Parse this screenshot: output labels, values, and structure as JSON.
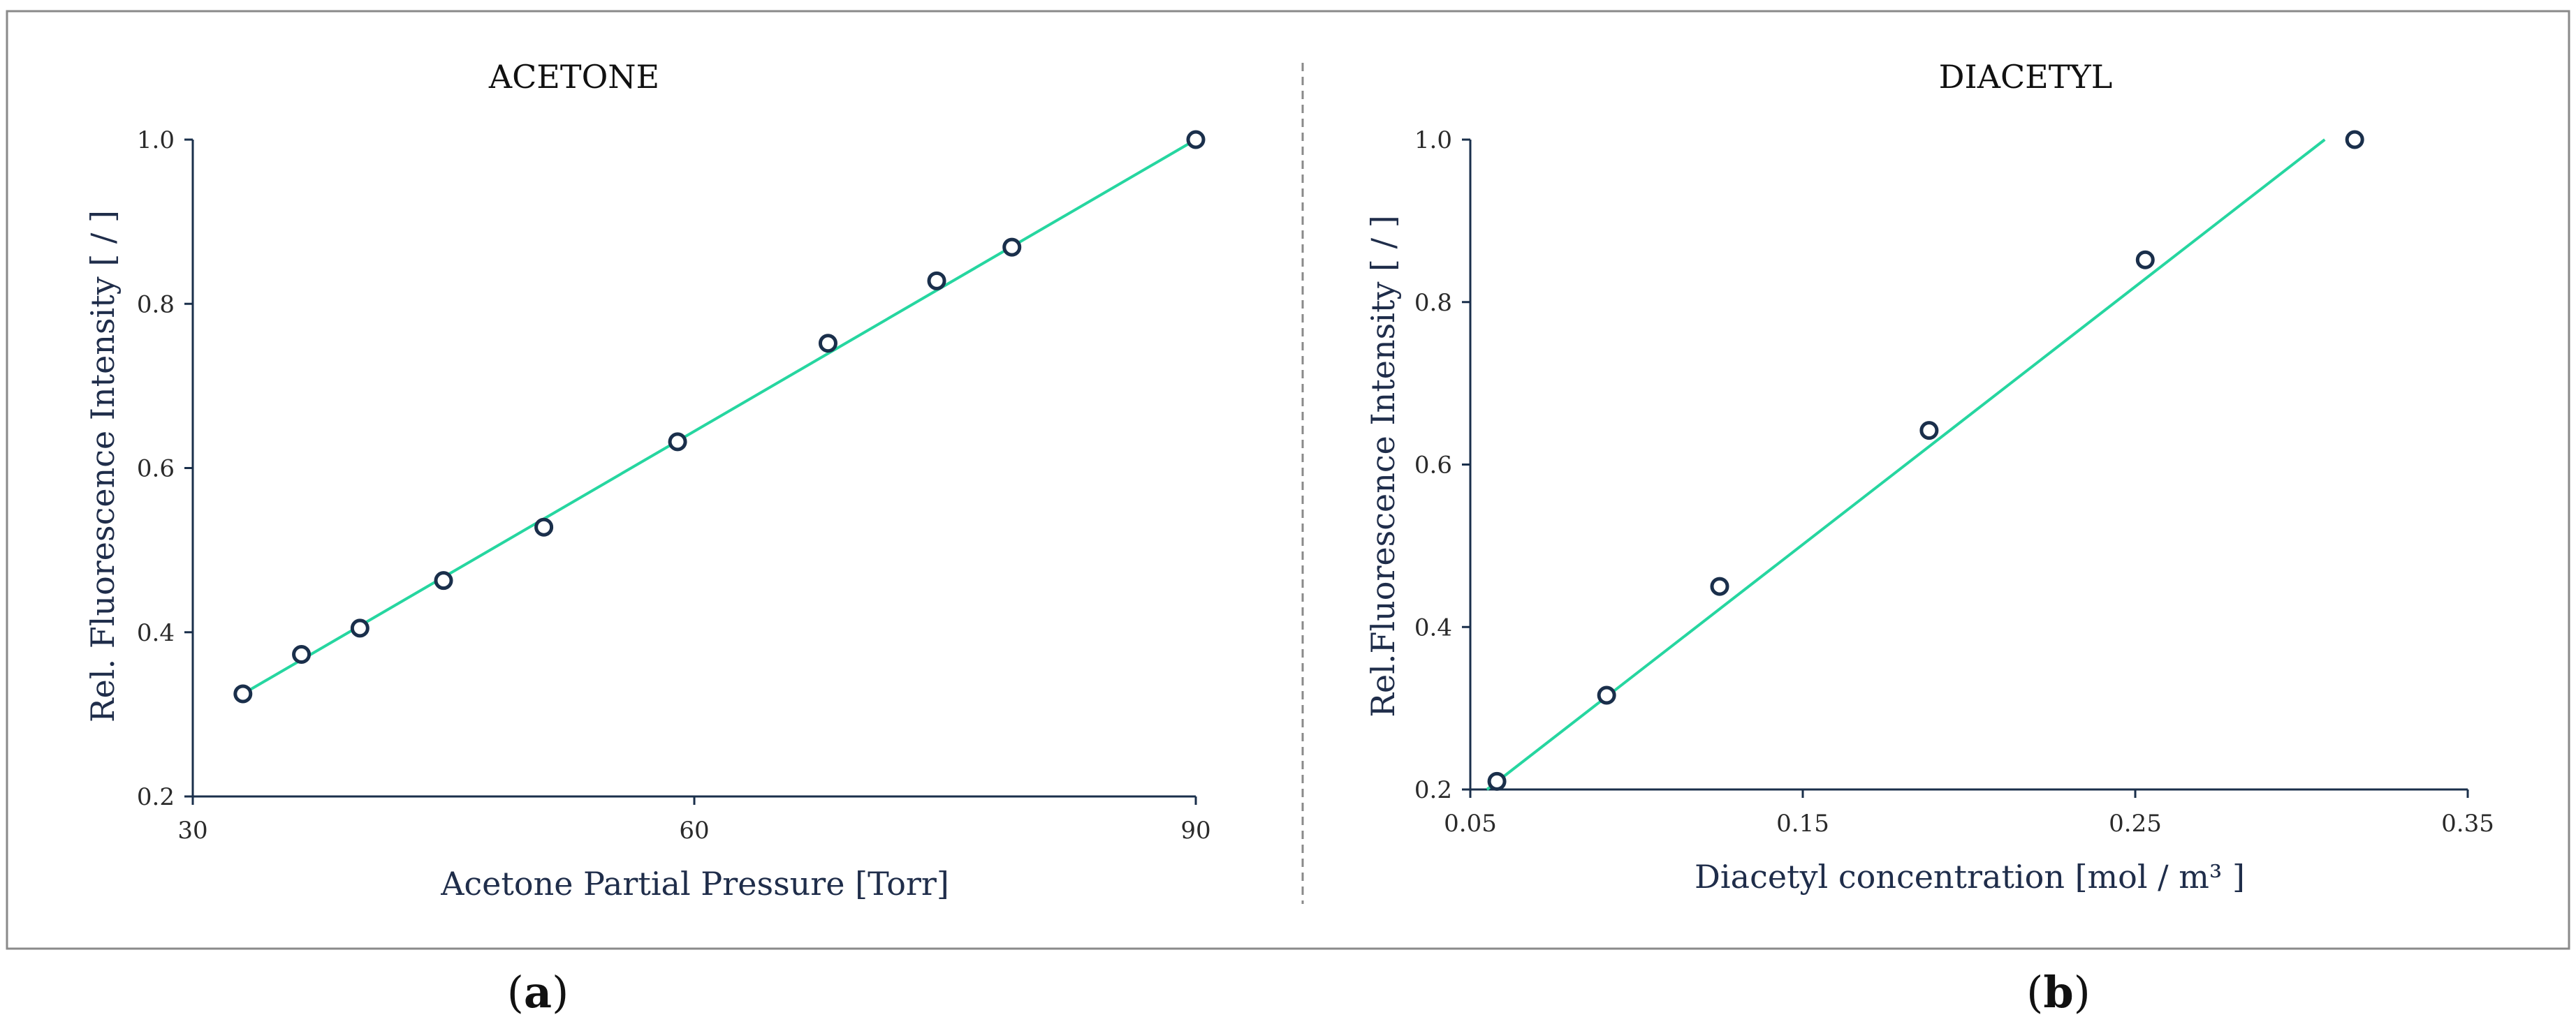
{
  "chart_data": [
    {
      "type": "scatter",
      "panel_label": "a",
      "title": "ACETONE",
      "xlabel": "Acetone Partial Pressure [Torr]",
      "ylabel": "Rel. Fluorescence Intensity [ / ]",
      "xlim": [
        30,
        90
      ],
      "ylim": [
        0.2,
        1.0
      ],
      "x_ticks": [
        30,
        60,
        90
      ],
      "y_ticks": [
        0.2,
        0.4,
        0.6,
        0.8,
        1.0
      ],
      "grid": false,
      "series": [
        {
          "x": [
            33,
            36.5,
            40,
            45,
            51,
            59,
            68,
            74.5,
            79,
            90
          ],
          "y": [
            0.325,
            0.373,
            0.405,
            0.463,
            0.528,
            0.632,
            0.752,
            0.828,
            0.869,
            1.0
          ],
          "marker": "open-circle",
          "color": "#1a2f4b"
        }
      ],
      "fit_line": {
        "x": [
          33,
          90
        ],
        "y": [
          0.325,
          1.0
        ],
        "color": "#26d6a0"
      }
    },
    {
      "type": "scatter",
      "panel_label": "b",
      "title": "DIACETYL",
      "xlabel": "Diacetyl concentration [mol / m³ ]",
      "ylabel": "Rel.Fluorescence Intensity [ / ]",
      "xlim": [
        0.05,
        0.35
      ],
      "ylim": [
        0.2,
        1.0
      ],
      "x_ticks": [
        0.05,
        0.15,
        0.25,
        0.35
      ],
      "y_ticks": [
        0.2,
        0.4,
        0.6,
        0.8,
        1.0
      ],
      "grid": false,
      "series": [
        {
          "x": [
            0.058,
            0.091,
            0.125,
            0.188,
            0.253,
            0.316
          ],
          "y": [
            0.21,
            0.316,
            0.45,
            0.642,
            0.852,
            1.0
          ],
          "marker": "open-circle",
          "color": "#1a2f4b"
        }
      ],
      "fit_line": {
        "x": [
          0.055,
          0.307
        ],
        "y": [
          0.2,
          1.0
        ],
        "color": "#26d6a0"
      }
    }
  ]
}
